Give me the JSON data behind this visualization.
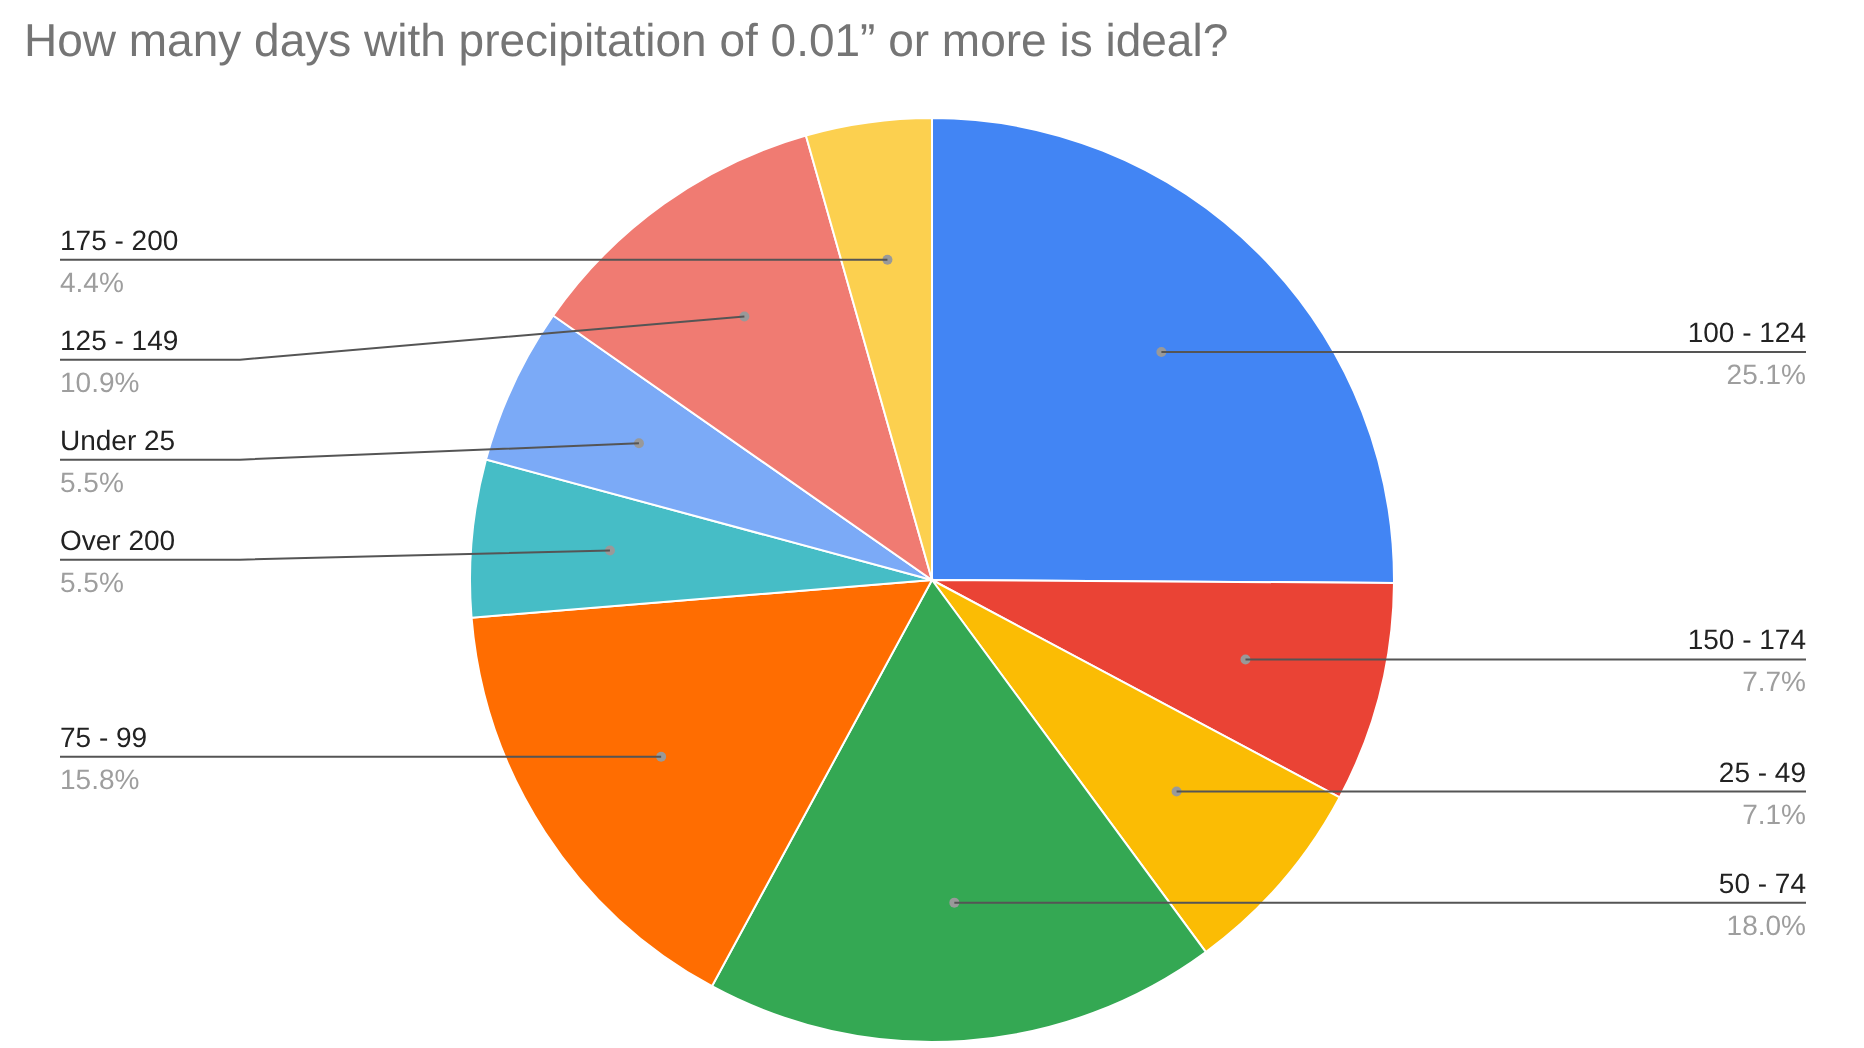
{
  "chart_data": {
    "type": "pie",
    "title": "How many days with precipitation of 0.01” or more is ideal?",
    "categories": [
      "100 - 124",
      "150 - 174",
      "25 - 49",
      "50 - 74",
      "75 - 99",
      "Over 200",
      "Under 25",
      "125 - 149",
      "175 - 200"
    ],
    "values": [
      25.1,
      7.7,
      7.1,
      18.0,
      15.8,
      5.5,
      5.5,
      10.9,
      4.4
    ],
    "value_labels": [
      "25.1%",
      "7.7%",
      "7.1%",
      "18.0%",
      "15.8%",
      "5.5%",
      "5.5%",
      "10.9%",
      "4.4%"
    ],
    "colors": [
      "#4285f4",
      "#ea4335",
      "#fbbc04",
      "#34a853",
      "#ff6d01",
      "#46bdc6",
      "#7baaf7",
      "#f07b72",
      "#fcd04f"
    ]
  }
}
